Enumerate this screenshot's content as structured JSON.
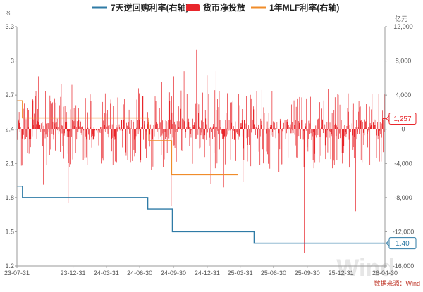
{
  "chart_data": {
    "type": "mixed",
    "legend_placement": "top-center",
    "legend": [
      {
        "name": "7天逆回购利率(右轴)",
        "color": "#2f7ba6",
        "marker": "line"
      },
      {
        "name": "货币净投放",
        "color": "#e8262b",
        "marker": "rect"
      },
      {
        "name": "1年MLF利率(右轴)",
        "color": "#f08c2a",
        "marker": "line"
      }
    ],
    "left_axis": {
      "unit": "%",
      "ylim": [
        1.2,
        3.3
      ],
      "ticks": [
        "3.3",
        "3",
        "2.7",
        "2.4",
        "2.1",
        "1.8",
        "1.5",
        "1.2"
      ],
      "tick_values": [
        3.3,
        3.0,
        2.7,
        2.4,
        2.1,
        1.8,
        1.5,
        1.2
      ]
    },
    "right_axis": {
      "unit": "亿元",
      "ylim": [
        -16000,
        12000
      ],
      "ticks": [
        "12,000",
        "8,000",
        "4,000",
        "0",
        "-4,000",
        "-8,000",
        "-12,000",
        "-16,000"
      ],
      "tick_values": [
        12000,
        8000,
        4000,
        0,
        -4000,
        -8000,
        -12000,
        -16000
      ]
    },
    "x_axis": {
      "range": [
        "2023-07-31",
        "2026-04-30"
      ],
      "ticks": [
        "23-07-31",
        "23-12-31",
        "24-03-31",
        "24-06-30",
        "24-09-30",
        "24-12-31",
        "25-03-31",
        "25-06-30",
        "25-09-30",
        "25-12-31",
        "26-04-30"
      ],
      "tick_dates": [
        "2023-07-31",
        "2023-12-31",
        "2024-03-31",
        "2024-06-30",
        "2024-09-30",
        "2024-12-31",
        "2025-03-31",
        "2025-06-30",
        "2025-09-30",
        "2025-12-31",
        "2026-04-30"
      ]
    },
    "series": [
      {
        "name": "7天逆回购利率(右轴)",
        "type": "step-line",
        "color": "#2f7ba6",
        "points": [
          [
            "2023-07-31",
            1.9
          ],
          [
            "2023-08-15",
            1.8
          ],
          [
            "2024-07-22",
            1.7
          ],
          [
            "2024-09-27",
            1.5
          ],
          [
            "2025-05-08",
            1.4
          ],
          [
            "2026-04-30",
            1.4
          ]
        ],
        "last_label": "1.40"
      },
      {
        "name": "1年MLF利率(右轴)",
        "type": "step-line",
        "color": "#f08c2a",
        "points": [
          [
            "2023-07-31",
            2.65
          ],
          [
            "2023-08-15",
            2.5
          ],
          [
            "2024-07-25",
            2.3
          ],
          [
            "2024-09-25",
            2.0
          ],
          [
            "2025-03-25",
            2.0
          ]
        ]
      },
      {
        "name": "货币净投放",
        "type": "bar",
        "axis": "right",
        "color": "#e8262b",
        "generator": {
          "start": "2023-08-01",
          "end": "2026-04-29",
          "step_days": 1,
          "seed": 20230731
        },
        "spikes": [
          [
            "2023-09-28",
            6200
          ],
          [
            "2023-10-11",
            -6500
          ],
          [
            "2023-11-29",
            5300
          ],
          [
            "2023-12-18",
            -8600
          ],
          [
            "2023-12-28",
            5200
          ],
          [
            "2024-01-25",
            5000
          ],
          [
            "2024-02-08",
            -4200
          ],
          [
            "2024-03-28",
            4200
          ],
          [
            "2024-04-18",
            -4200
          ],
          [
            "2024-06-27",
            4800
          ],
          [
            "2024-08-01",
            -4800
          ],
          [
            "2024-08-29",
            5500
          ],
          [
            "2024-09-24",
            -9000
          ],
          [
            "2024-10-01",
            6200
          ],
          [
            "2024-10-08",
            -3800
          ],
          [
            "2024-10-29",
            6800
          ],
          [
            "2024-11-20",
            6000
          ],
          [
            "2024-12-02",
            9300
          ],
          [
            "2024-12-31",
            6300
          ],
          [
            "2025-01-10",
            -6400
          ],
          [
            "2025-01-24",
            6800
          ],
          [
            "2025-02-14",
            -6800
          ],
          [
            "2025-03-27",
            4100
          ],
          [
            "2025-04-08",
            -6200
          ],
          [
            "2025-05-15",
            4500
          ],
          [
            "2025-05-29",
            4600
          ],
          [
            "2025-06-26",
            4500
          ],
          [
            "2025-07-15",
            -5000
          ],
          [
            "2025-08-28",
            3900
          ],
          [
            "2025-09-22",
            -14500
          ],
          [
            "2025-10-09",
            3800
          ],
          [
            "2025-11-26",
            4700
          ],
          [
            "2026-01-20",
            4200
          ],
          [
            "2026-02-09",
            -9600
          ],
          [
            "2026-03-26",
            4100
          ],
          [
            "2026-04-24",
            1257
          ]
        ],
        "last_label": "1,257"
      }
    ],
    "source": "数据来源：Wind",
    "watermark": "Wind"
  }
}
